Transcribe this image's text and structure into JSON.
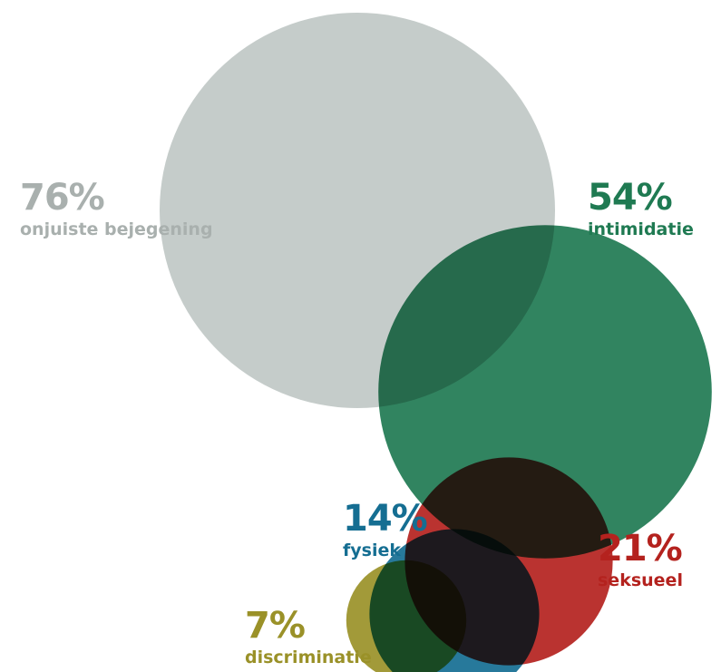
{
  "chart_data": {
    "type": "bubble",
    "unit": "%",
    "categories": [
      {
        "label": "onjuiste bejegening",
        "value": 76,
        "display": "76%",
        "color": "#c5ccca"
      },
      {
        "label": "intimidatie",
        "value": 54,
        "display": "54%",
        "color": "#1f7a52"
      },
      {
        "label": "fysiek",
        "value": 14,
        "display": "14%",
        "color": "#156e92"
      },
      {
        "label": "seksueel",
        "value": 21,
        "display": "21%",
        "color": "#b4221e"
      },
      {
        "label": "discriminatie",
        "value": 7,
        "display": "7%",
        "color": "#9a9128"
      }
    ]
  }
}
